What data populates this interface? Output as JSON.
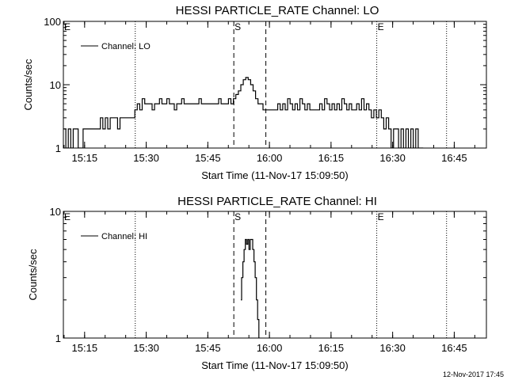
{
  "footer_timestamp": "12-Nov-2017 17:45",
  "chart_data": [
    {
      "type": "line",
      "title": "HESSI PARTICLE_RATE Channel: LO",
      "xlabel": "Start Time (11-Nov-17 15:09:50)",
      "ylabel": "Counts/sec",
      "yscale": "log",
      "ylim": [
        1,
        100
      ],
      "yticks": [
        "1",
        "10",
        "100"
      ],
      "xlim_minutes": [
        0,
        103
      ],
      "xticks": [
        "15:15",
        "15:30",
        "15:45",
        "16:00",
        "16:15",
        "16:30",
        "16:45"
      ],
      "xtick_minutes": [
        5.17,
        20.17,
        35.17,
        50.17,
        65.17,
        80.17,
        95.17
      ],
      "legend": "Channel: LO",
      "legend_position": "top-left",
      "markers": [
        {
          "label": "E",
          "minute": 0,
          "style": "dotted"
        },
        {
          "label": "",
          "minute": 17.5,
          "style": "dotted"
        },
        {
          "label": "S",
          "minute": 41.5,
          "style": "dashed"
        },
        {
          "label": "",
          "minute": 49.3,
          "style": "dashed"
        },
        {
          "label": "E",
          "minute": 76.3,
          "style": "dotted"
        },
        {
          "label": "",
          "minute": 93.3,
          "style": "dotted"
        }
      ],
      "series": [
        {
          "name": "Channel: LO",
          "x": [
            0,
            0.6,
            1.2,
            1.8,
            2.4,
            3.0,
            3.6,
            4.2,
            4.8,
            5.4,
            6.0,
            6.6,
            7.2,
            7.8,
            8.4,
            9.0,
            9.6,
            10.2,
            10.8,
            11.4,
            12.0,
            12.6,
            13.2,
            13.8,
            14.4,
            15.0,
            15.6,
            16.2,
            16.8,
            17.4,
            18.0,
            18.6,
            19.2,
            19.8,
            20.4,
            21.0,
            21.6,
            22.2,
            22.8,
            23.4,
            24.0,
            24.6,
            25.2,
            25.8,
            26.4,
            27.0,
            27.6,
            28.2,
            28.8,
            29.4,
            30.0,
            30.6,
            31.2,
            31.8,
            32.4,
            33.0,
            33.6,
            34.2,
            34.8,
            35.4,
            36.0,
            36.6,
            37.2,
            37.8,
            38.4,
            39.0,
            39.6,
            40.2,
            40.8,
            41.4,
            42.0,
            42.6,
            43.2,
            43.8,
            44.4,
            45.0,
            45.6,
            46.2,
            46.8,
            47.4,
            48.0,
            48.6,
            49.2,
            49.8,
            50.4,
            51.0,
            51.6,
            52.2,
            52.8,
            53.4,
            54.0,
            54.6,
            55.2,
            55.8,
            56.4,
            57.0,
            57.6,
            58.2,
            58.8,
            59.4,
            60.0,
            60.6,
            61.2,
            61.8,
            62.4,
            63.0,
            63.6,
            64.2,
            64.8,
            65.4,
            66.0,
            66.6,
            67.2,
            67.8,
            68.4,
            69.0,
            69.6,
            70.2,
            70.8,
            71.4,
            72.0,
            72.6,
            73.2,
            73.8,
            74.4,
            75.0,
            75.6,
            76.2,
            76.8,
            77.4,
            78.0,
            78.6,
            79.2,
            79.8,
            80.4,
            81.0,
            81.6,
            82.2,
            82.8,
            83.4,
            84.0,
            84.6,
            85.2,
            85.8,
            86.4,
            87.0
          ],
          "y": [
            2,
            1,
            2,
            1,
            2,
            2,
            1,
            1,
            2,
            2,
            2,
            2,
            2,
            2,
            2,
            3,
            2,
            3,
            2,
            3,
            3,
            3,
            2,
            3,
            3,
            3,
            3,
            3,
            3,
            4,
            5,
            4,
            6,
            5,
            5,
            5,
            4,
            5,
            5,
            6,
            5,
            5,
            6,
            5,
            5,
            4,
            5,
            5,
            6,
            5,
            5,
            5,
            5,
            5,
            5,
            6,
            5,
            5,
            5,
            5,
            5,
            5,
            5,
            6,
            5,
            5,
            5,
            6,
            5,
            6,
            7,
            8,
            10,
            12,
            13,
            12,
            10,
            8,
            6,
            5,
            5,
            4,
            4,
            4,
            4,
            4,
            4,
            5,
            4,
            5,
            4,
            6,
            5,
            4,
            5,
            4,
            6,
            5,
            4,
            5,
            4,
            4,
            4,
            4,
            5,
            4,
            6,
            5,
            4,
            5,
            4,
            5,
            4,
            6,
            5,
            4,
            5,
            4,
            4,
            5,
            4,
            6,
            4,
            5,
            4,
            3,
            4,
            3,
            4,
            3,
            2,
            3,
            2,
            1,
            2,
            2,
            1,
            2,
            1,
            2,
            1,
            2,
            1,
            2,
            1,
            1
          ]
        }
      ]
    },
    {
      "type": "line",
      "title": "HESSI PARTICLE_RATE Channel: HI",
      "xlabel": "Start Time (11-Nov-17 15:09:50)",
      "ylabel": "Counts/sec",
      "yscale": "log",
      "ylim": [
        1,
        10
      ],
      "yticks": [
        "1",
        "10"
      ],
      "xlim_minutes": [
        0,
        103
      ],
      "xticks": [
        "15:15",
        "15:30",
        "15:45",
        "16:00",
        "16:15",
        "16:30",
        "16:45"
      ],
      "xtick_minutes": [
        5.17,
        20.17,
        35.17,
        50.17,
        65.17,
        80.17,
        95.17
      ],
      "legend": "Channel: HI",
      "legend_position": "top-left",
      "markers": [
        {
          "label": "E",
          "minute": 0,
          "style": "dotted"
        },
        {
          "label": "",
          "minute": 17.5,
          "style": "dotted"
        },
        {
          "label": "S",
          "minute": 41.5,
          "style": "dashed"
        },
        {
          "label": "",
          "minute": 49.3,
          "style": "dashed"
        },
        {
          "label": "E",
          "minute": 76.3,
          "style": "dotted"
        },
        {
          "label": "",
          "minute": 93.3,
          "style": "dotted"
        }
      ],
      "series": [
        {
          "name": "Channel: HI",
          "x": [
            43.2,
            43.4,
            43.7,
            44.0,
            44.3,
            44.6,
            44.9,
            45.2,
            45.5,
            45.8,
            46.1,
            46.4,
            46.7,
            47.0,
            47.3,
            47.6
          ],
          "y": [
            2,
            3,
            4,
            5,
            6,
            5.5,
            6,
            5,
            6,
            6,
            5,
            4,
            3,
            2,
            1.4,
            1
          ]
        }
      ]
    }
  ]
}
